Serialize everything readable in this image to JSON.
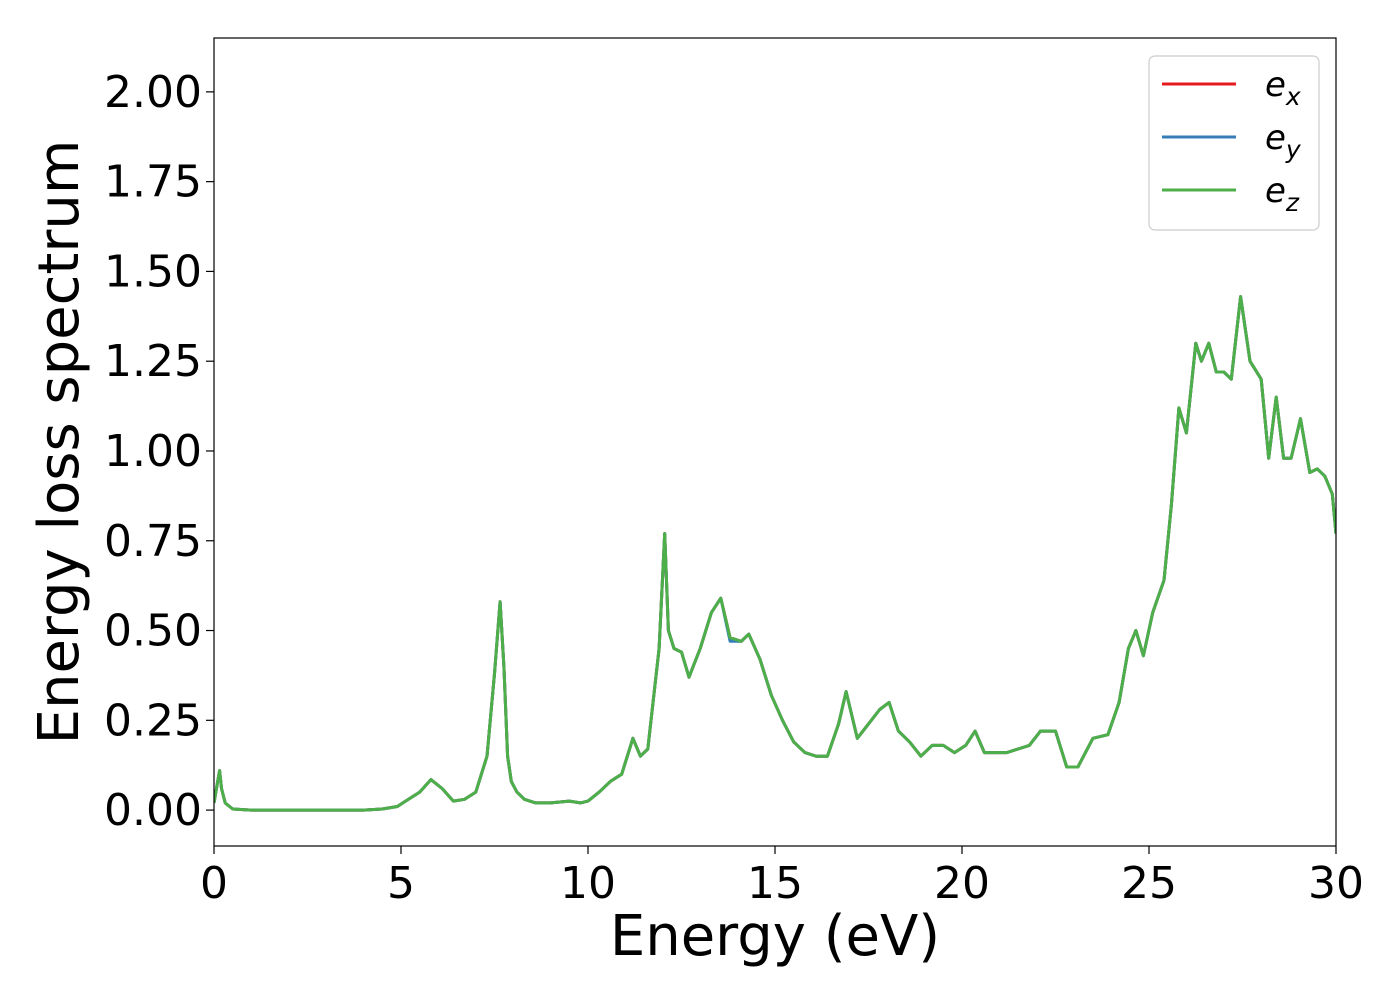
{
  "chart_data": {
    "type": "line",
    "title": "",
    "xlabel": "Energy (eV)",
    "ylabel": "Energy loss spectrum",
    "xlim": [
      0,
      30
    ],
    "ylim": [
      -0.1,
      2.15
    ],
    "xticks": [
      0,
      5,
      10,
      15,
      20,
      25,
      30
    ],
    "xtick_labels": [
      "0",
      "5",
      "10",
      "15",
      "20",
      "25",
      "30"
    ],
    "yticks": [
      0.0,
      0.25,
      0.5,
      0.75,
      1.0,
      1.25,
      1.5,
      1.75,
      2.0
    ],
    "ytick_labels": [
      "0.00",
      "0.25",
      "0.50",
      "0.75",
      "1.00",
      "1.25",
      "1.50",
      "1.75",
      "2.00"
    ],
    "grid": false,
    "legend_position": "top-right",
    "x": [
      0.0,
      0.1,
      0.15,
      0.2,
      0.3,
      0.5,
      1.0,
      2.0,
      3.0,
      4.0,
      4.5,
      4.9,
      5.2,
      5.5,
      5.8,
      6.1,
      6.4,
      6.7,
      7.0,
      7.3,
      7.5,
      7.65,
      7.75,
      7.85,
      7.95,
      8.1,
      8.3,
      8.6,
      9.0,
      9.5,
      9.8,
      10.0,
      10.3,
      10.6,
      10.9,
      11.2,
      11.4,
      11.6,
      11.9,
      12.05,
      12.15,
      12.3,
      12.5,
      12.7,
      13.0,
      13.3,
      13.55,
      13.8,
      14.1,
      14.3,
      14.6,
      14.9,
      15.2,
      15.5,
      15.8,
      16.1,
      16.4,
      16.7,
      16.9,
      17.2,
      17.5,
      17.8,
      18.05,
      18.3,
      18.6,
      18.9,
      19.2,
      19.5,
      19.8,
      20.1,
      20.35,
      20.6,
      20.9,
      21.2,
      21.5,
      21.8,
      22.1,
      22.5,
      22.8,
      23.1,
      23.5,
      23.9,
      24.2,
      24.45,
      24.65,
      24.85,
      25.1,
      25.4,
      25.6,
      25.8,
      26.0,
      26.25,
      26.4,
      26.6,
      26.8,
      27.0,
      27.2,
      27.45,
      27.7,
      28.0,
      28.2,
      28.4,
      28.6,
      28.8,
      29.05,
      29.3,
      29.5,
      29.7,
      29.9,
      30.0
    ],
    "series": [
      {
        "name": "e_x",
        "color": "#e41a1c",
        "values": [
          0.02,
          0.08,
          0.11,
          0.06,
          0.02,
          0.003,
          0.0,
          0.0,
          0.0,
          0.0,
          0.003,
          0.01,
          0.03,
          0.05,
          0.085,
          0.06,
          0.025,
          0.03,
          0.05,
          0.15,
          0.38,
          0.58,
          0.4,
          0.15,
          0.08,
          0.05,
          0.03,
          0.02,
          0.02,
          0.025,
          0.02,
          0.025,
          0.05,
          0.08,
          0.1,
          0.2,
          0.15,
          0.17,
          0.45,
          0.77,
          0.5,
          0.45,
          0.44,
          0.37,
          0.45,
          0.55,
          0.59,
          0.48,
          0.47,
          0.49,
          0.42,
          0.32,
          0.25,
          0.19,
          0.16,
          0.15,
          0.15,
          0.24,
          0.33,
          0.2,
          0.24,
          0.28,
          0.3,
          0.22,
          0.19,
          0.15,
          0.18,
          0.18,
          0.16,
          0.18,
          0.22,
          0.16,
          0.16,
          0.16,
          0.17,
          0.18,
          0.22,
          0.22,
          0.12,
          0.12,
          0.2,
          0.21,
          0.3,
          0.45,
          0.5,
          0.43,
          0.55,
          0.64,
          0.85,
          1.12,
          1.05,
          1.3,
          1.25,
          1.3,
          1.22,
          1.22,
          1.2,
          1.43,
          1.25,
          1.2,
          0.98,
          1.15,
          0.98,
          0.98,
          1.09,
          0.94,
          0.95,
          0.93,
          0.88,
          0.77
        ]
      },
      {
        "name": "e_y",
        "color": "#377eb8",
        "values": [
          0.02,
          0.08,
          0.11,
          0.06,
          0.02,
          0.003,
          0.0,
          0.0,
          0.0,
          0.0,
          0.003,
          0.01,
          0.03,
          0.05,
          0.085,
          0.06,
          0.025,
          0.03,
          0.05,
          0.15,
          0.38,
          0.58,
          0.4,
          0.15,
          0.08,
          0.05,
          0.03,
          0.02,
          0.02,
          0.025,
          0.02,
          0.025,
          0.05,
          0.08,
          0.1,
          0.2,
          0.15,
          0.17,
          0.45,
          0.77,
          0.5,
          0.45,
          0.44,
          0.37,
          0.45,
          0.55,
          0.59,
          0.47,
          0.47,
          0.49,
          0.42,
          0.32,
          0.25,
          0.19,
          0.16,
          0.15,
          0.15,
          0.24,
          0.33,
          0.2,
          0.24,
          0.28,
          0.3,
          0.22,
          0.19,
          0.15,
          0.18,
          0.18,
          0.16,
          0.18,
          0.22,
          0.16,
          0.16,
          0.16,
          0.17,
          0.18,
          0.22,
          0.22,
          0.12,
          0.12,
          0.2,
          0.21,
          0.3,
          0.45,
          0.5,
          0.43,
          0.55,
          0.64,
          0.85,
          1.12,
          1.05,
          1.3,
          1.25,
          1.3,
          1.22,
          1.22,
          1.2,
          1.43,
          1.25,
          1.2,
          0.98,
          1.15,
          0.98,
          0.98,
          1.09,
          0.94,
          0.95,
          0.93,
          0.88,
          0.77
        ]
      },
      {
        "name": "e_z",
        "color": "#4daf4a",
        "values": [
          0.02,
          0.08,
          0.11,
          0.06,
          0.02,
          0.003,
          0.0,
          0.0,
          0.0,
          0.0,
          0.003,
          0.01,
          0.03,
          0.05,
          0.085,
          0.06,
          0.025,
          0.03,
          0.05,
          0.15,
          0.38,
          0.58,
          0.4,
          0.15,
          0.08,
          0.05,
          0.03,
          0.02,
          0.02,
          0.025,
          0.02,
          0.025,
          0.05,
          0.08,
          0.1,
          0.2,
          0.15,
          0.17,
          0.45,
          0.77,
          0.5,
          0.45,
          0.44,
          0.37,
          0.45,
          0.55,
          0.59,
          0.48,
          0.47,
          0.49,
          0.42,
          0.32,
          0.25,
          0.19,
          0.16,
          0.15,
          0.15,
          0.24,
          0.33,
          0.2,
          0.24,
          0.28,
          0.3,
          0.22,
          0.19,
          0.15,
          0.18,
          0.18,
          0.16,
          0.18,
          0.22,
          0.16,
          0.16,
          0.16,
          0.17,
          0.18,
          0.22,
          0.22,
          0.12,
          0.12,
          0.2,
          0.21,
          0.3,
          0.45,
          0.5,
          0.43,
          0.55,
          0.64,
          0.85,
          1.12,
          1.05,
          1.3,
          1.25,
          1.3,
          1.22,
          1.22,
          1.2,
          1.43,
          1.25,
          1.2,
          0.98,
          1.15,
          0.98,
          0.98,
          1.09,
          0.94,
          0.95,
          0.93,
          0.88,
          0.77
        ]
      }
    ],
    "legend": [
      {
        "base": "e",
        "sub": "x",
        "color": "#e41a1c"
      },
      {
        "base": "e",
        "sub": "y",
        "color": "#377eb8"
      },
      {
        "base": "e",
        "sub": "z",
        "color": "#4daf4a"
      }
    ]
  }
}
